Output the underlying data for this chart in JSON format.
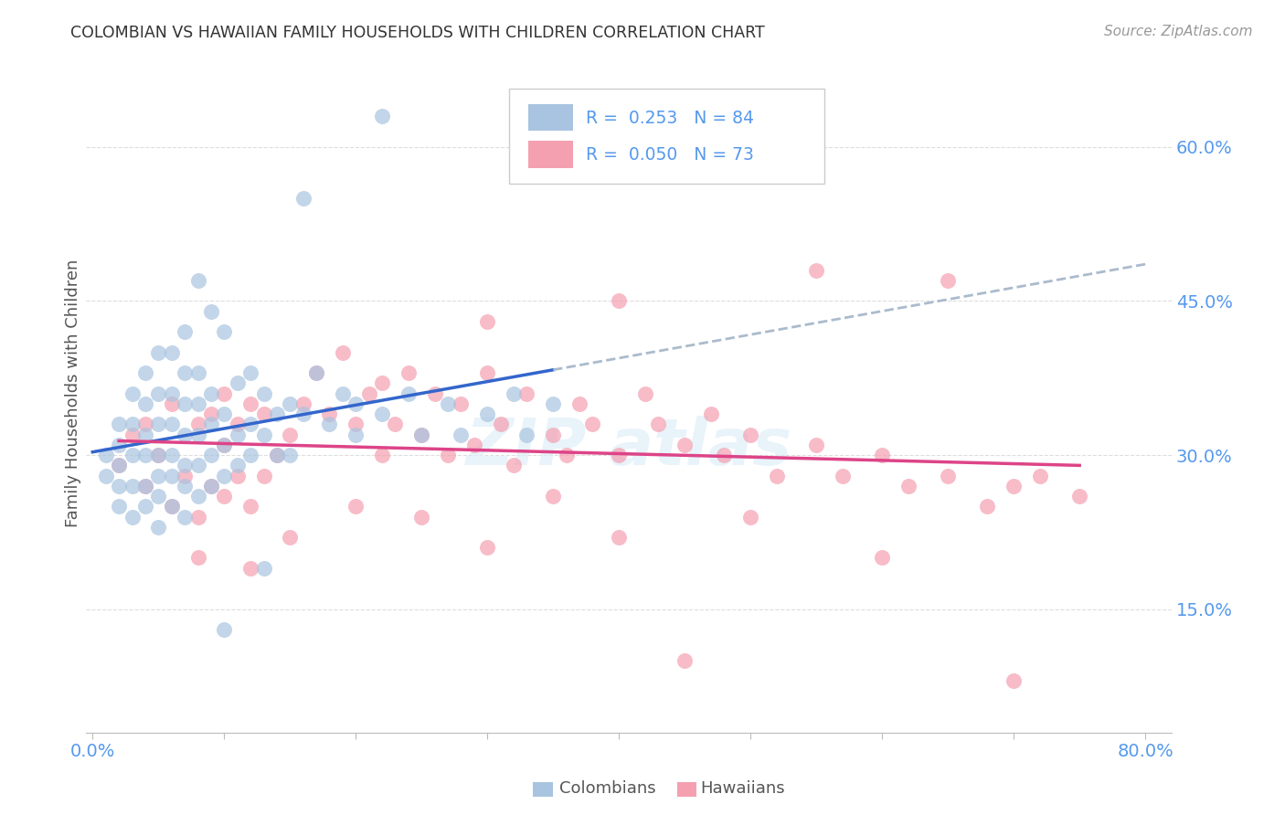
{
  "title": "COLOMBIAN VS HAWAIIAN FAMILY HOUSEHOLDS WITH CHILDREN CORRELATION CHART",
  "source": "Source: ZipAtlas.com",
  "ylabel": "Family Households with Children",
  "ytick_labels": [
    "15.0%",
    "30.0%",
    "45.0%",
    "60.0%"
  ],
  "ytick_values": [
    0.15,
    0.3,
    0.45,
    0.6
  ],
  "xlim": [
    -0.005,
    0.82
  ],
  "ylim": [
    0.03,
    0.69
  ],
  "colombian_R": "0.253",
  "colombian_N": "84",
  "hawaiian_R": "0.050",
  "hawaiian_N": "73",
  "colombian_color": "#a8c4e0",
  "hawaiian_color": "#f4a0b0",
  "colombian_line_color": "#3366cc",
  "hawaiian_line_color": "#dd4488",
  "trend_line_color": "#aabbcc",
  "background_color": "#ffffff",
  "grid_color": "#dddddd",
  "title_color": "#333333",
  "tick_color": "#5599ee",
  "label_color": "#5599ee",
  "colombian_x": [
    0.01,
    0.01,
    0.02,
    0.02,
    0.02,
    0.02,
    0.02,
    0.03,
    0.03,
    0.03,
    0.03,
    0.03,
    0.04,
    0.04,
    0.04,
    0.04,
    0.04,
    0.04,
    0.05,
    0.05,
    0.05,
    0.05,
    0.05,
    0.05,
    0.05,
    0.06,
    0.06,
    0.06,
    0.06,
    0.06,
    0.06,
    0.07,
    0.07,
    0.07,
    0.07,
    0.07,
    0.07,
    0.07,
    0.08,
    0.08,
    0.08,
    0.08,
    0.08,
    0.08,
    0.09,
    0.09,
    0.09,
    0.09,
    0.09,
    0.1,
    0.1,
    0.1,
    0.1,
    0.11,
    0.11,
    0.11,
    0.12,
    0.12,
    0.12,
    0.13,
    0.13,
    0.14,
    0.14,
    0.15,
    0.15,
    0.16,
    0.17,
    0.18,
    0.19,
    0.2,
    0.2,
    0.22,
    0.24,
    0.25,
    0.27,
    0.28,
    0.3,
    0.32,
    0.33,
    0.35,
    0.1,
    0.13,
    0.16,
    0.22
  ],
  "colombian_y": [
    0.28,
    0.3,
    0.25,
    0.27,
    0.29,
    0.31,
    0.33,
    0.24,
    0.27,
    0.3,
    0.33,
    0.36,
    0.25,
    0.27,
    0.3,
    0.32,
    0.35,
    0.38,
    0.23,
    0.26,
    0.28,
    0.3,
    0.33,
    0.36,
    0.4,
    0.25,
    0.28,
    0.3,
    0.33,
    0.36,
    0.4,
    0.24,
    0.27,
    0.29,
    0.32,
    0.35,
    0.38,
    0.42,
    0.26,
    0.29,
    0.32,
    0.35,
    0.38,
    0.47,
    0.27,
    0.3,
    0.33,
    0.36,
    0.44,
    0.28,
    0.31,
    0.34,
    0.42,
    0.29,
    0.32,
    0.37,
    0.3,
    0.33,
    0.38,
    0.32,
    0.36,
    0.3,
    0.34,
    0.3,
    0.35,
    0.34,
    0.38,
    0.33,
    0.36,
    0.32,
    0.35,
    0.34,
    0.36,
    0.32,
    0.35,
    0.32,
    0.34,
    0.36,
    0.32,
    0.35,
    0.13,
    0.19,
    0.55,
    0.63
  ],
  "hawaiian_x": [
    0.02,
    0.03,
    0.04,
    0.04,
    0.05,
    0.06,
    0.06,
    0.07,
    0.08,
    0.08,
    0.09,
    0.09,
    0.1,
    0.1,
    0.1,
    0.11,
    0.11,
    0.12,
    0.12,
    0.13,
    0.13,
    0.14,
    0.15,
    0.16,
    0.17,
    0.18,
    0.19,
    0.2,
    0.21,
    0.22,
    0.22,
    0.23,
    0.24,
    0.25,
    0.26,
    0.27,
    0.28,
    0.29,
    0.3,
    0.31,
    0.32,
    0.33,
    0.35,
    0.36,
    0.37,
    0.38,
    0.4,
    0.42,
    0.43,
    0.45,
    0.47,
    0.48,
    0.5,
    0.52,
    0.55,
    0.57,
    0.6,
    0.62,
    0.65,
    0.68,
    0.7,
    0.72,
    0.75,
    0.08,
    0.12,
    0.15,
    0.2,
    0.25,
    0.3,
    0.35,
    0.4,
    0.5,
    0.6
  ],
  "hawaiian_y": [
    0.29,
    0.32,
    0.27,
    0.33,
    0.3,
    0.25,
    0.35,
    0.28,
    0.24,
    0.33,
    0.27,
    0.34,
    0.26,
    0.31,
    0.36,
    0.28,
    0.33,
    0.25,
    0.35,
    0.28,
    0.34,
    0.3,
    0.32,
    0.35,
    0.38,
    0.34,
    0.4,
    0.33,
    0.36,
    0.3,
    0.37,
    0.33,
    0.38,
    0.32,
    0.36,
    0.3,
    0.35,
    0.31,
    0.38,
    0.33,
    0.29,
    0.36,
    0.32,
    0.3,
    0.35,
    0.33,
    0.3,
    0.36,
    0.33,
    0.31,
    0.34,
    0.3,
    0.32,
    0.28,
    0.31,
    0.28,
    0.3,
    0.27,
    0.28,
    0.25,
    0.27,
    0.28,
    0.26,
    0.2,
    0.19,
    0.22,
    0.25,
    0.24,
    0.21,
    0.26,
    0.22,
    0.24,
    0.2
  ],
  "hawaiian_y_outliers": [
    0.48,
    0.45,
    0.43,
    0.47,
    0.1,
    0.08
  ],
  "hawaiian_x_outliers": [
    0.55,
    0.4,
    0.3,
    0.65,
    0.45,
    0.7
  ]
}
